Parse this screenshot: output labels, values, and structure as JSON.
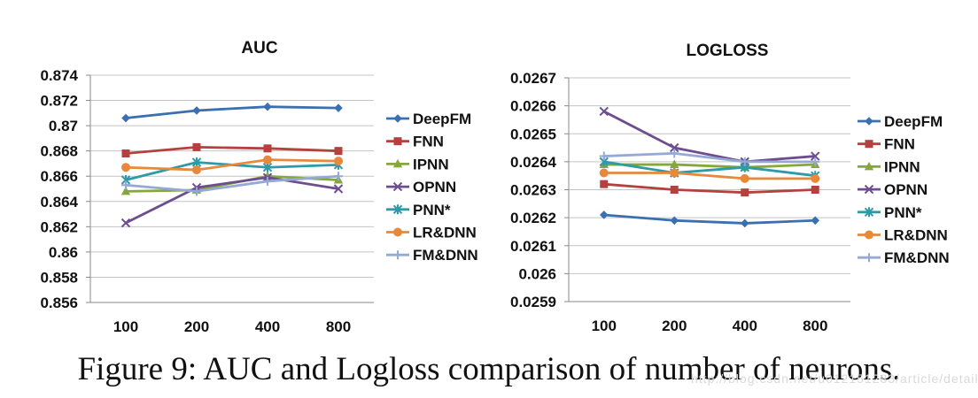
{
  "caption": "Figure 9: AUC and Logloss comparison of number of neurons.",
  "watermark": "http://blog.csdn.net/u012151283/article/details/binxu",
  "chart_data": [
    {
      "type": "line",
      "title": "AUC",
      "xlabel": "",
      "ylabel": "",
      "categories": [
        "100",
        "200",
        "400",
        "800"
      ],
      "ylim": [
        0.856,
        0.874
      ],
      "yticks": [
        "0.856",
        "0.858",
        "0.86",
        "0.862",
        "0.864",
        "0.866",
        "0.868",
        "0.87",
        "0.872",
        "0.874"
      ],
      "grid": true,
      "legend": "right",
      "series": [
        {
          "name": "DeepFM",
          "color": "#3a6fb0",
          "marker": "diamond",
          "values": [
            0.8706,
            0.8712,
            0.8715,
            0.8714
          ]
        },
        {
          "name": "FNN",
          "color": "#b5403d",
          "marker": "square",
          "values": [
            0.8678,
            0.8683,
            0.8682,
            0.868
          ]
        },
        {
          "name": "IPNN",
          "color": "#86a83a",
          "marker": "triangle",
          "values": [
            0.8648,
            0.8649,
            0.866,
            0.8657
          ]
        },
        {
          "name": "OPNN",
          "color": "#6d4d8f",
          "marker": "x",
          "values": [
            0.8623,
            0.8651,
            0.8659,
            0.865
          ]
        },
        {
          "name": "PNN*",
          "color": "#2e9aa8",
          "marker": "star",
          "values": [
            0.8657,
            0.8671,
            0.8667,
            0.8669
          ]
        },
        {
          "name": "LR&DNN",
          "color": "#e8883a",
          "marker": "circle",
          "values": [
            0.8667,
            0.8665,
            0.8673,
            0.8672
          ]
        },
        {
          "name": "FM&DNN",
          "color": "#94a9d6",
          "marker": "plus",
          "values": [
            0.8653,
            0.8648,
            0.8656,
            0.866
          ]
        }
      ]
    },
    {
      "type": "line",
      "title": "LOGLOSS",
      "xlabel": "",
      "ylabel": "",
      "categories": [
        "100",
        "200",
        "400",
        "800"
      ],
      "ylim": [
        0.0259,
        0.0267
      ],
      "yticks": [
        "0.0259",
        "0.026",
        "0.0261",
        "0.0262",
        "0.0263",
        "0.0264",
        "0.0265",
        "0.0266",
        "0.0267"
      ],
      "grid": true,
      "legend": "right",
      "series": [
        {
          "name": "DeepFM",
          "color": "#3a6fb0",
          "marker": "diamond",
          "values": [
            0.02621,
            0.02619,
            0.02618,
            0.02619
          ]
        },
        {
          "name": "FNN",
          "color": "#b5403d",
          "marker": "square",
          "values": [
            0.02632,
            0.0263,
            0.02629,
            0.0263
          ]
        },
        {
          "name": "IPNN",
          "color": "#86a83a",
          "marker": "triangle",
          "values": [
            0.02639,
            0.02639,
            0.02638,
            0.02639
          ]
        },
        {
          "name": "OPNN",
          "color": "#6d4d8f",
          "marker": "x",
          "values": [
            0.02658,
            0.02645,
            0.0264,
            0.02642
          ]
        },
        {
          "name": "PNN*",
          "color": "#2e9aa8",
          "marker": "star",
          "values": [
            0.0264,
            0.02636,
            0.02638,
            0.02635
          ]
        },
        {
          "name": "LR&DNN",
          "color": "#e8883a",
          "marker": "circle",
          "values": [
            0.02636,
            0.02636,
            0.02634,
            0.02634
          ]
        },
        {
          "name": "FM&DNN",
          "color": "#94a9d6",
          "marker": "plus",
          "values": [
            0.02642,
            0.02643,
            0.0264,
            0.0264
          ]
        }
      ]
    }
  ]
}
